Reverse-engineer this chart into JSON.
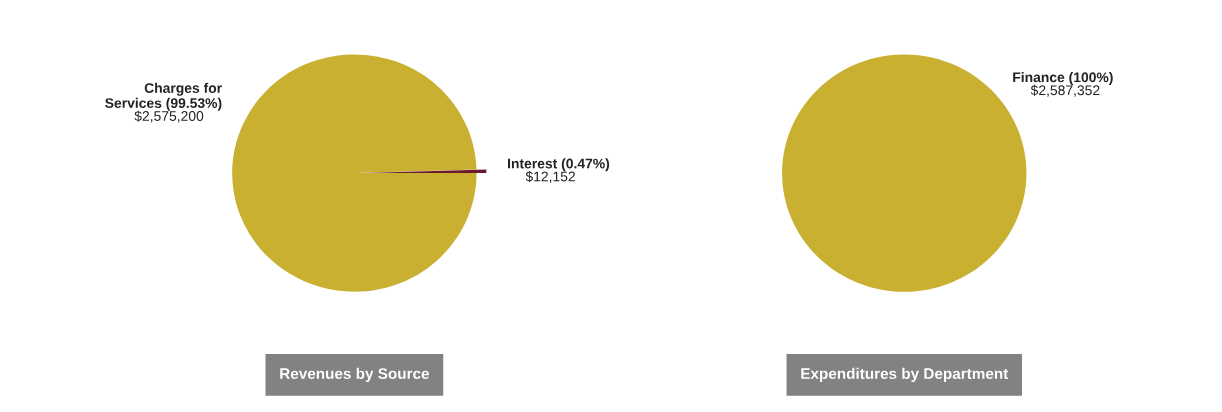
{
  "chart_data": [
    {
      "type": "pie",
      "title": "Revenues by Source",
      "categories": [
        "Charges for\nServices (99.53%)",
        "Interest (0.47%)"
      ],
      "values": [
        2575200,
        12152
      ],
      "colors": [
        "#c9b031",
        "#6b1c2c"
      ],
      "value_labels": [
        "$2,575,200",
        "$12,152"
      ]
    },
    {
      "type": "pie",
      "title": "Expenditures by Department",
      "categories": [
        "Finance (100%)"
      ],
      "values": [
        2587352
      ],
      "colors": [
        "#c9b031"
      ],
      "value_labels": [
        "$2,587,352"
      ]
    }
  ]
}
